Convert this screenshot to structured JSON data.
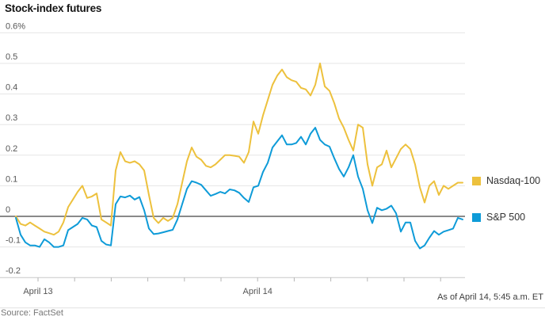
{
  "title": "Stock-index futures",
  "footer": {
    "source": "Source: FactSet",
    "as_of": "As of April 14, 5:45 a.m. ET"
  },
  "colors": {
    "nasdaq": "#EDC13D",
    "sp500": "#0E9BD8",
    "gridline": "#e6e6e6",
    "zero_line": "#636363",
    "axis_line": "#c9c9c9",
    "tick": "#b5b5b5",
    "axis_text": "#555555"
  },
  "chart_data": {
    "type": "line",
    "title": "Stock-index futures",
    "unit": "%",
    "ylim": [
      -0.2,
      0.6
    ],
    "grid": "horizontal",
    "legend_position": "right",
    "zero_line": true,
    "yticks": [
      {
        "label": "0.6%",
        "value": 0.6
      },
      {
        "label": "0.5",
        "value": 0.5
      },
      {
        "label": "0.4",
        "value": 0.4
      },
      {
        "label": "0.3",
        "value": 0.3
      },
      {
        "label": "0.2",
        "value": 0.2
      },
      {
        "label": "0.1",
        "value": 0.1
      },
      {
        "label": "0",
        "value": 0
      },
      {
        "label": "-0.1",
        "value": -0.1
      },
      {
        "label": "-0.2",
        "value": -0.2
      }
    ],
    "x_axis": {
      "tick_count": 12,
      "labels": [
        {
          "text": "April 13",
          "tick": 0
        },
        {
          "text": "April 14",
          "tick": 6
        }
      ]
    },
    "series": [
      {
        "name": "Nasdaq-100",
        "color": "#EDC13D",
        "values": [
          0,
          -0.025,
          -0.03,
          -0.02,
          -0.03,
          -0.04,
          -0.05,
          -0.055,
          -0.06,
          -0.05,
          -0.02,
          0.03,
          0.055,
          0.08,
          0.1,
          0.06,
          0.065,
          0.075,
          -0.01,
          -0.02,
          -0.03,
          0.15,
          0.21,
          0.18,
          0.175,
          0.18,
          0.17,
          0.15,
          0.07,
          -0.005,
          -0.022,
          -0.005,
          -0.015,
          -0.005,
          0.04,
          0.11,
          0.18,
          0.225,
          0.195,
          0.185,
          0.165,
          0.16,
          0.17,
          0.185,
          0.2,
          0.2,
          0.198,
          0.195,
          0.175,
          0.21,
          0.31,
          0.27,
          0.33,
          0.38,
          0.43,
          0.46,
          0.48,
          0.455,
          0.445,
          0.44,
          0.42,
          0.415,
          0.395,
          0.43,
          0.5,
          0.425,
          0.41,
          0.37,
          0.32,
          0.29,
          0.25,
          0.215,
          0.3,
          0.29,
          0.17,
          0.1,
          0.16,
          0.17,
          0.215,
          0.16,
          0.19,
          0.22,
          0.235,
          0.22,
          0.17,
          0.095,
          0.045,
          0.1,
          0.115,
          0.07,
          0.1,
          0.09,
          0.1,
          0.11,
          0.11
        ]
      },
      {
        "name": "S&P 500",
        "color": "#0E9BD8",
        "values": [
          -0.005,
          -0.06,
          -0.085,
          -0.095,
          -0.095,
          -0.1,
          -0.075,
          -0.085,
          -0.1,
          -0.1,
          -0.095,
          -0.045,
          -0.035,
          -0.025,
          -0.005,
          -0.01,
          -0.03,
          -0.035,
          -0.08,
          -0.092,
          -0.095,
          0.04,
          0.065,
          0.062,
          0.068,
          0.055,
          0.063,
          0.02,
          -0.04,
          -0.058,
          -0.056,
          -0.052,
          -0.048,
          -0.044,
          -0.01,
          0.04,
          0.09,
          0.115,
          0.11,
          0.103,
          0.085,
          0.067,
          0.073,
          0.08,
          0.075,
          0.088,
          0.085,
          0.077,
          0.06,
          0.047,
          0.095,
          0.1,
          0.145,
          0.175,
          0.225,
          0.245,
          0.265,
          0.235,
          0.235,
          0.24,
          0.26,
          0.235,
          0.27,
          0.29,
          0.25,
          0.235,
          0.228,
          0.19,
          0.155,
          0.13,
          0.16,
          0.2,
          0.13,
          0.09,
          0.02,
          -0.022,
          0.028,
          0.02,
          0.025,
          0.035,
          0.01,
          -0.05,
          -0.02,
          -0.02,
          -0.08,
          -0.105,
          -0.095,
          -0.07,
          -0.048,
          -0.06,
          -0.05,
          -0.045,
          -0.04,
          -0.005,
          -0.01
        ]
      }
    ]
  }
}
